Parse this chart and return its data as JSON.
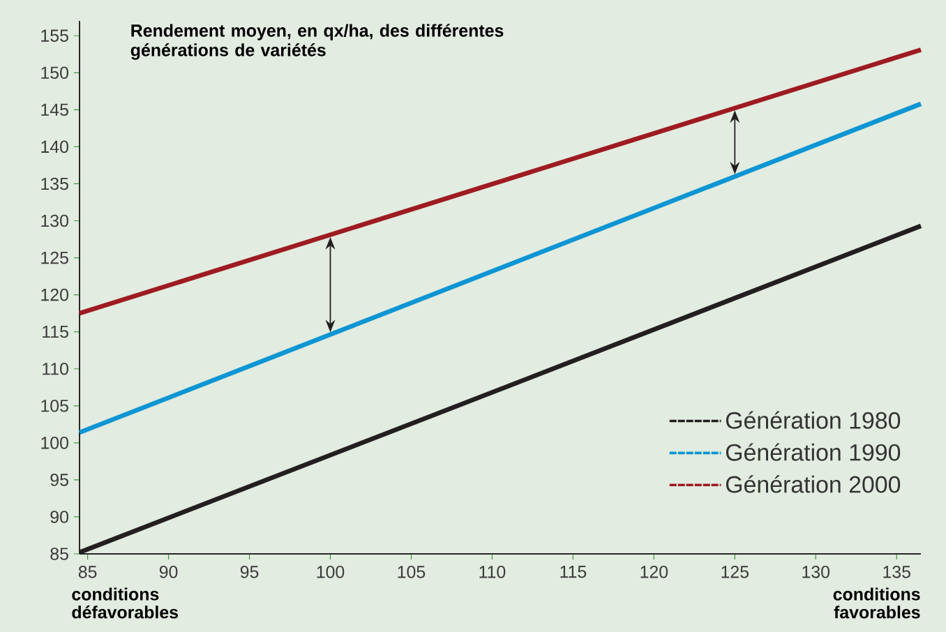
{
  "chart_data": {
    "type": "line",
    "title": "Rendement moyen, en qx/ha, des différentes générations de variétés",
    "x": [
      84.5,
      136.5
    ],
    "series": [
      {
        "name": "Génération 1980",
        "color": "#231f20",
        "values": [
          85.2,
          129.3
        ]
      },
      {
        "name": "Génération 1990",
        "color": "#0e95d4",
        "values": [
          101.4,
          145.8
        ]
      },
      {
        "name": "Génération 2000",
        "color": "#9e1b22",
        "values": [
          117.5,
          153.1
        ]
      }
    ],
    "xlim": [
      84.5,
      136.5
    ],
    "ylim": [
      85,
      157
    ],
    "xticks": [
      85,
      90,
      95,
      100,
      105,
      110,
      115,
      120,
      125,
      130,
      135
    ],
    "yticks": [
      85,
      90,
      95,
      100,
      105,
      110,
      115,
      120,
      125,
      130,
      135,
      140,
      145,
      150,
      155
    ],
    "legend": "bottom right",
    "grid": false,
    "marker": "none",
    "line_style": "solid",
    "annotations": [
      "conditions défavorables",
      "conditions favorables"
    ]
  }
}
